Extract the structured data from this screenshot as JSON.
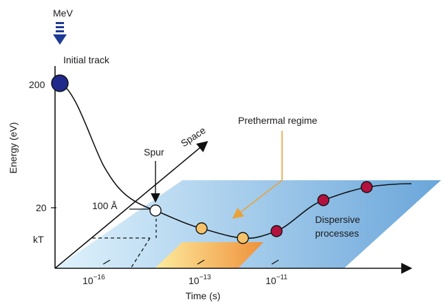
{
  "labels": {
    "mev": "MeV",
    "initial_track": "Initial track",
    "y_axis": "Energy (eV)",
    "x_axis": "Time (s)",
    "space_axis": "Space",
    "spur": "Spur",
    "angstrom": "100 Å",
    "prethermal": "Prethermal regime",
    "dispersive_1": "Dispersive",
    "dispersive_2": "processes"
  },
  "y_ticks": {
    "t200": "200",
    "t20": "20",
    "tkT": "kT"
  },
  "x_ticks": {
    "t1": {
      "base": "10",
      "exp": "−16"
    },
    "t2": {
      "base": "10",
      "exp": "−13"
    },
    "t3": {
      "base": "10",
      "exp": "−11"
    }
  },
  "colors": {
    "plane_light": "#d8eefb",
    "plane_dark": "#6fa8dc",
    "start_node": "#1f2a8a",
    "white_node": "#ffffff",
    "yellow_node": "#f6c36a",
    "red_node": "#b3123e",
    "arrow_orange": "#e8a23a",
    "mev_arrow": "#1f3a93",
    "patch_light": "#fbe79a",
    "patch_dark": "#f09a3e"
  }
}
